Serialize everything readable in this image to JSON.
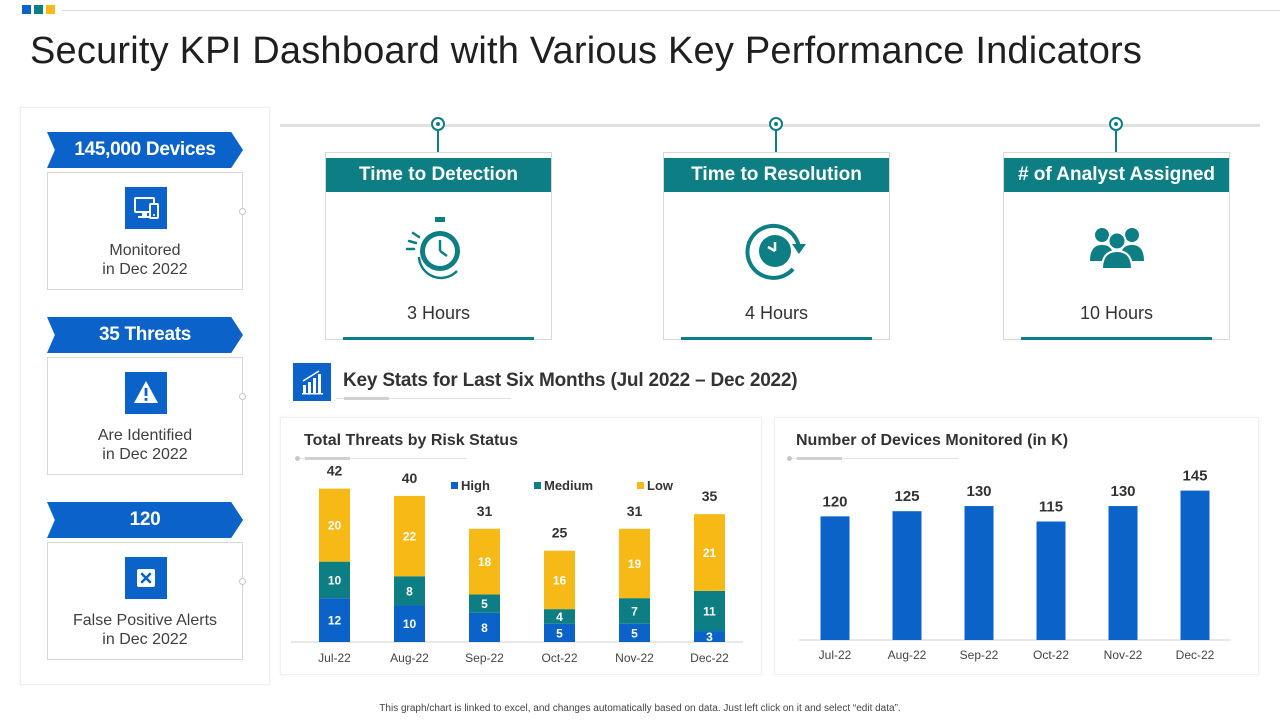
{
  "colors": {
    "blue": "#0b63c9",
    "teal": "#0e7e85",
    "yellow": "#f7b915",
    "corner1": "#0b63c9",
    "corner2": "#0e7e85",
    "corner3": "#f7b915"
  },
  "page": {
    "title": "Security KPI Dashboard with Various Key Performance Indicators",
    "footnote": "This graph/chart is linked to excel, and changes automatically based on data. Just left click on it and select “edit data”."
  },
  "left_kpis": [
    {
      "banner": "145,000 Devices",
      "label_line1": "Monitored",
      "label_line2": "in Dec 2022",
      "icon": "monitor-devices-icon"
    },
    {
      "banner": "35 Threats",
      "label_line1": "Are Identified",
      "label_line2": "in Dec 2022",
      "icon": "warning-icon"
    },
    {
      "banner": "120",
      "label_line1": "False Positive Alerts",
      "label_line2": "in Dec 2022",
      "icon": "close-alert-icon"
    }
  ],
  "cards": [
    {
      "title": "Time to Detection",
      "value": "3 Hours",
      "icon": "stopwatch-icon"
    },
    {
      "title": "Time to Resolution",
      "value": "4 Hours",
      "icon": "clock-refresh-icon"
    },
    {
      "title": "# of Analyst Assigned",
      "value": "10 Hours",
      "icon": "team-icon"
    }
  ],
  "key_stats": {
    "title": "Key Stats for Last Six Months (Jul 2022 – Dec 2022)",
    "icon": "bar-chart-icon"
  },
  "chart_data": [
    {
      "type": "bar",
      "stacked": true,
      "title": "Total Threats by Risk Status",
      "categories": [
        "Jul-22",
        "Aug-22",
        "Sep-22",
        "Oct-22",
        "Nov-22",
        "Dec-22"
      ],
      "series": [
        {
          "name": "High",
          "color": "#0b63c9",
          "values": [
            12,
            10,
            8,
            5,
            5,
            3
          ]
        },
        {
          "name": "Medium",
          "color": "#0e7e85",
          "values": [
            10,
            8,
            5,
            4,
            7,
            11
          ]
        },
        {
          "name": "Low",
          "color": "#f7b915",
          "values": [
            20,
            22,
            18,
            16,
            19,
            21
          ]
        }
      ],
      "totals": [
        42,
        40,
        31,
        25,
        31,
        35
      ],
      "legend": "top",
      "ylim": [
        0,
        46
      ],
      "xlabel": "",
      "ylabel": ""
    },
    {
      "type": "bar",
      "title": "Number of Devices Monitored (in K)",
      "categories": [
        "Jul-22",
        "Aug-22",
        "Sep-22",
        "Oct-22",
        "Nov-22",
        "Dec-22"
      ],
      "values": [
        120,
        125,
        130,
        115,
        130,
        145
      ],
      "color": "#0b63c9",
      "ylim": [
        0,
        165
      ],
      "xlabel": "",
      "ylabel": ""
    }
  ]
}
